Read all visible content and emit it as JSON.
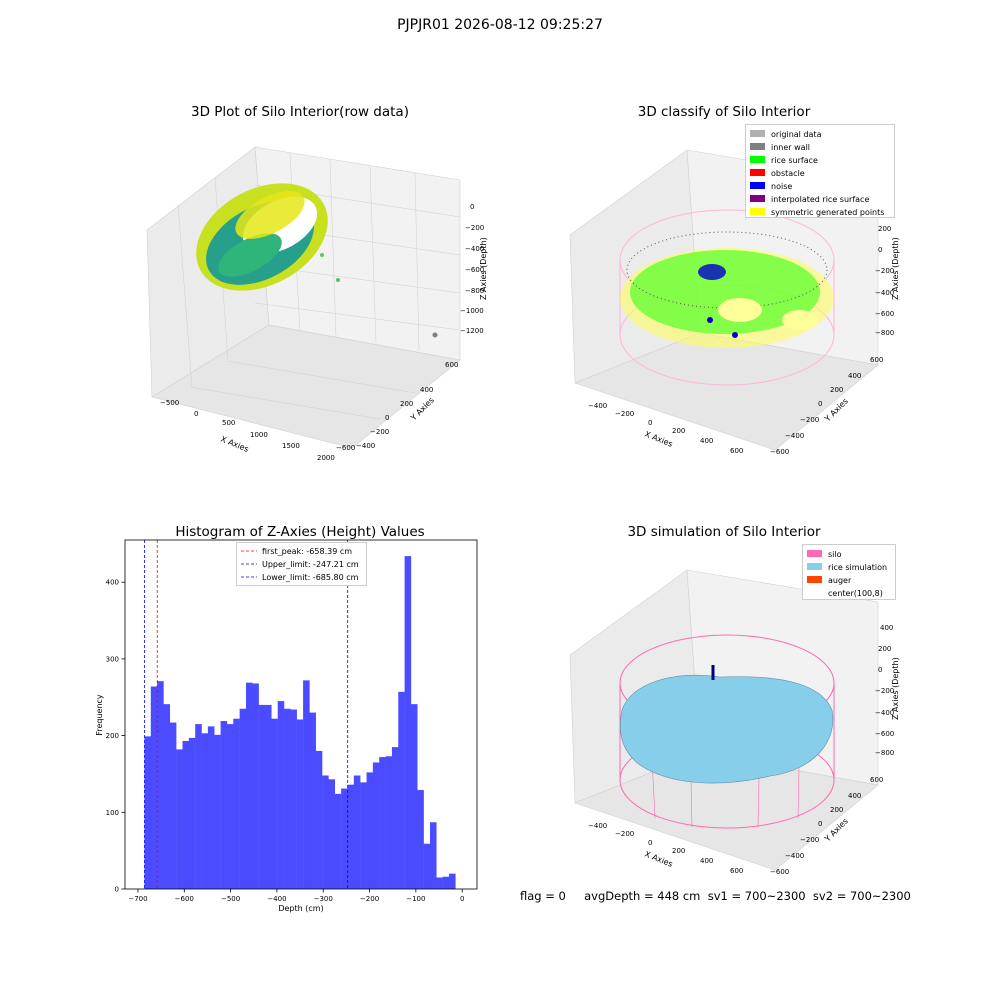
{
  "suptitle": "PJPJR01 2026-08-12 09:25:27",
  "footer": {
    "text": "flag = 0     avgDepth = 448 cm  sv1 = 700~2300  sv2 = 700~2300"
  },
  "panels": {
    "raw": {
      "title": "3D Plot of Silo Interior(row data)",
      "xlabel": "X Axies",
      "ylabel": "Y Axies",
      "zlabel": "Z Axies (Depth)",
      "xticks": [
        "−500",
        "0",
        "500",
        "1000",
        "1500",
        "2000"
      ],
      "yticks": [
        "600",
        "400",
        "200",
        "0",
        "−200",
        "−400",
        "−600"
      ],
      "zticks": [
        "0",
        "−200",
        "−400",
        "−600",
        "−800",
        "−1000",
        "−1200"
      ]
    },
    "classify": {
      "title": "3D classify of Silo Interior",
      "xlabel": "X Axies",
      "ylabel": "Y Axies",
      "zlabel": "Z Axies (Depth)",
      "xticks": [
        "−400",
        "−200",
        "0",
        "200",
        "400",
        "600"
      ],
      "yticks": [
        "600",
        "400",
        "200",
        "0",
        "−200",
        "−400",
        "−600"
      ],
      "zticks": [
        "400",
        "200",
        "0",
        "−200",
        "−400",
        "−600",
        "−800"
      ],
      "legend": [
        {
          "label": "original data",
          "color": "#b0b0b0"
        },
        {
          "label": "inner wall",
          "color": "#808080"
        },
        {
          "label": "rice surface",
          "color": "#00ff00"
        },
        {
          "label": "obstacle",
          "color": "#ff0000"
        },
        {
          "label": "noise",
          "color": "#0000ff"
        },
        {
          "label": "interpolated rice surface",
          "color": "#800080"
        },
        {
          "label": "symmetric generated points",
          "color": "#ffff00"
        }
      ]
    },
    "simulation": {
      "title": "3D simulation of Silo Interior",
      "xlabel": "X Axies",
      "ylabel": "Y Axies",
      "zlabel": "Z Axies (Depth)",
      "xticks": [
        "−400",
        "−200",
        "0",
        "200",
        "400",
        "600"
      ],
      "yticks": [
        "600",
        "400",
        "200",
        "0",
        "−200",
        "−400",
        "−600"
      ],
      "zticks": [
        "400",
        "200",
        "0",
        "−200",
        "−400",
        "−600",
        "−800"
      ],
      "legend": [
        {
          "label": "silo",
          "color": "#ff69b4"
        },
        {
          "label": "rice simulation",
          "color": "#87ceeb"
        },
        {
          "label": "auger",
          "color": "#ff4500"
        },
        {
          "label": "center(100,8)",
          "color": "#ffffff"
        }
      ]
    }
  },
  "chart_data": {
    "type": "bar",
    "title": "Histogram of Z-Axies (Height) Values",
    "xlabel": "Depth (cm)",
    "ylabel": "Frequency",
    "xlim": [
      -728,
      32
    ],
    "ylim": [
      0,
      455
    ],
    "xticks": [
      -700,
      -600,
      -500,
      -400,
      -300,
      -200,
      -100,
      0
    ],
    "xticklabels": [
      "−700",
      "−600",
      "−500",
      "−400",
      "−300",
      "−200",
      "−100",
      "0"
    ],
    "yticks": [
      0,
      100,
      200,
      300,
      400
    ],
    "bar_color": "#4b4bff",
    "bin_width": 13.7,
    "bin_start": -686,
    "values": [
      199,
      264,
      271,
      241,
      217,
      182,
      193,
      197,
      215,
      203,
      212,
      201,
      219,
      215,
      222,
      235,
      269,
      268,
      240,
      240,
      222,
      245,
      235,
      234,
      221,
      272,
      230,
      180,
      148,
      143,
      124,
      131,
      136,
      148,
      139,
      152,
      165,
      172,
      173,
      185,
      257,
      434,
      241,
      129,
      59,
      87,
      15,
      16,
      20
    ],
    "vlines": [
      {
        "label": "first_peak: -658.39 cm",
        "x": -658.39,
        "color": "#ff0000"
      },
      {
        "label": "Upper_limit: -247.21 cm",
        "x": -247.21,
        "color": "#0000ff"
      },
      {
        "label": "Lower_limit: -685.80 cm",
        "x": -685.8,
        "color": "#0000ff"
      }
    ],
    "grid": false,
    "legend_position": "upper center"
  }
}
